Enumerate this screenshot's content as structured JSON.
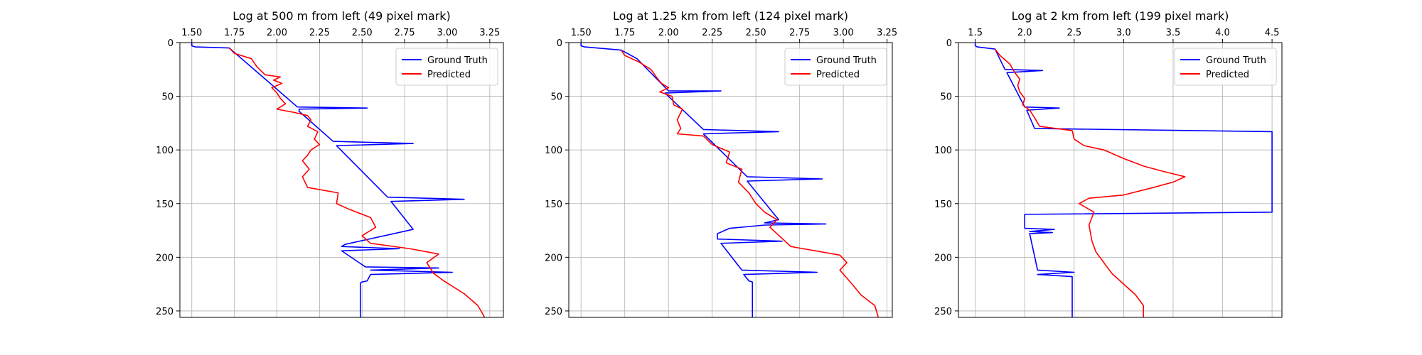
{
  "chart_data": [
    {
      "type": "line",
      "title": "Log at 500 m from left (49 pixel mark)",
      "xlim": [
        1.43,
        3.33
      ],
      "ylim": [
        256,
        0
      ],
      "xticks": [
        1.5,
        1.75,
        2.0,
        2.25,
        2.5,
        2.75,
        3.0,
        3.25
      ],
      "xtick_labels": [
        "1.50",
        "1.75",
        "2.00",
        "2.25",
        "2.50",
        "2.75",
        "3.00",
        "3.25"
      ],
      "yticks": [
        0,
        50,
        100,
        150,
        200,
        250
      ],
      "ytick_labels": [
        "0",
        "50",
        "100",
        "150",
        "200",
        "250"
      ],
      "grid": true,
      "legend": "top-right",
      "series": [
        {
          "name": "Ground Truth",
          "color": "#0000ff",
          "points": [
            [
              1.5,
              0
            ],
            [
              1.5,
              3
            ],
            [
              1.52,
              4
            ],
            [
              1.72,
              5
            ],
            [
              2.12,
              60
            ],
            [
              2.53,
              61
            ],
            [
              2.13,
              62
            ],
            [
              2.13,
              64
            ],
            [
              2.33,
              92
            ],
            [
              2.8,
              94
            ],
            [
              2.35,
              96
            ],
            [
              2.65,
              144
            ],
            [
              3.1,
              146
            ],
            [
              2.67,
              148
            ],
            [
              2.8,
              174
            ],
            [
              2.4,
              188
            ],
            [
              2.38,
              190
            ],
            [
              2.72,
              192
            ],
            [
              2.38,
              194
            ],
            [
              2.52,
              209
            ],
            [
              2.95,
              210
            ],
            [
              2.55,
              212
            ],
            [
              3.03,
              214
            ],
            [
              2.55,
              216
            ],
            [
              2.53,
              222
            ],
            [
              2.5,
              223
            ],
            [
              2.49,
              224
            ],
            [
              2.49,
              256
            ]
          ]
        },
        {
          "name": "Predicted",
          "color": "#ff0000",
          "points": [
            [
              1.72,
              5
            ],
            [
              1.75,
              10
            ],
            [
              1.85,
              15
            ],
            [
              1.88,
              22
            ],
            [
              1.93,
              30
            ],
            [
              2.02,
              32
            ],
            [
              1.98,
              35
            ],
            [
              2.03,
              38
            ],
            [
              1.97,
              42
            ],
            [
              2.0,
              47
            ],
            [
              2.02,
              52
            ],
            [
              2.05,
              57
            ],
            [
              2.0,
              62
            ],
            [
              2.1,
              65
            ],
            [
              2.18,
              68
            ],
            [
              2.2,
              72
            ],
            [
              2.18,
              78
            ],
            [
              2.24,
              83
            ],
            [
              2.22,
              90
            ],
            [
              2.25,
              95
            ],
            [
              2.2,
              100
            ],
            [
              2.18,
              105
            ],
            [
              2.15,
              110
            ],
            [
              2.19,
              118
            ],
            [
              2.15,
              125
            ],
            [
              2.18,
              135
            ],
            [
              2.36,
              140
            ],
            [
              2.35,
              150
            ],
            [
              2.42,
              155
            ],
            [
              2.55,
              163
            ],
            [
              2.58,
              172
            ],
            [
              2.5,
              180
            ],
            [
              2.55,
              187
            ],
            [
              2.78,
              192
            ],
            [
              2.95,
              197
            ],
            [
              2.88,
              205
            ],
            [
              2.92,
              215
            ],
            [
              2.98,
              222
            ],
            [
              3.1,
              234
            ],
            [
              3.18,
              245
            ],
            [
              3.22,
              256
            ]
          ]
        }
      ]
    },
    {
      "type": "line",
      "title": "Log at 1.25 km from left (124 pixel mark)",
      "xlim": [
        1.43,
        3.28
      ],
      "ylim": [
        256,
        0
      ],
      "xticks": [
        1.5,
        1.75,
        2.0,
        2.25,
        2.5,
        2.75,
        3.0,
        3.25
      ],
      "xtick_labels": [
        "1.50",
        "1.75",
        "2.00",
        "2.25",
        "2.50",
        "2.75",
        "3.00",
        "3.25"
      ],
      "yticks": [
        0,
        50,
        100,
        150,
        200,
        250
      ],
      "ytick_labels": [
        "0",
        "50",
        "100",
        "150",
        "200",
        "250"
      ],
      "grid": true,
      "legend": "top-right",
      "series": [
        {
          "name": "Ground Truth",
          "color": "#0000ff",
          "points": [
            [
              1.5,
              0
            ],
            [
              1.5,
              3
            ],
            [
              1.52,
              4
            ],
            [
              1.73,
              7
            ],
            [
              1.82,
              15
            ],
            [
              2.0,
              45
            ],
            [
              2.3,
              45
            ],
            [
              1.98,
              47
            ],
            [
              2.2,
              81
            ],
            [
              2.63,
              83
            ],
            [
              2.2,
              85
            ],
            [
              2.45,
              125
            ],
            [
              2.88,
              127
            ],
            [
              2.45,
              129
            ],
            [
              2.63,
              165
            ],
            [
              2.55,
              168
            ],
            [
              2.9,
              169
            ],
            [
              2.55,
              170
            ],
            [
              2.35,
              173
            ],
            [
              2.28,
              178
            ],
            [
              2.28,
              183
            ],
            [
              2.65,
              185
            ],
            [
              2.3,
              187
            ],
            [
              2.42,
              212
            ],
            [
              2.85,
              214
            ],
            [
              2.43,
              216
            ],
            [
              2.46,
              222
            ],
            [
              2.48,
              223
            ],
            [
              2.48,
              256
            ]
          ]
        },
        {
          "name": "Predicted",
          "color": "#ff0000",
          "points": [
            [
              1.73,
              7
            ],
            [
              1.75,
              12
            ],
            [
              1.83,
              18
            ],
            [
              1.9,
              25
            ],
            [
              1.93,
              32
            ],
            [
              1.96,
              38
            ],
            [
              2.0,
              42
            ],
            [
              1.95,
              46
            ],
            [
              2.02,
              50
            ],
            [
              2.03,
              58
            ],
            [
              2.08,
              62
            ],
            [
              2.05,
              72
            ],
            [
              2.07,
              80
            ],
            [
              2.05,
              85
            ],
            [
              2.2,
              87
            ],
            [
              2.25,
              95
            ],
            [
              2.35,
              102
            ],
            [
              2.33,
              112
            ],
            [
              2.42,
              118
            ],
            [
              2.4,
              130
            ],
            [
              2.46,
              140
            ],
            [
              2.5,
              150
            ],
            [
              2.55,
              158
            ],
            [
              2.62,
              165
            ],
            [
              2.58,
              172
            ],
            [
              2.62,
              178
            ],
            [
              2.7,
              190
            ],
            [
              2.98,
              198
            ],
            [
              3.02,
              205
            ],
            [
              2.98,
              212
            ],
            [
              3.05,
              225
            ],
            [
              3.1,
              235
            ],
            [
              3.18,
              245
            ],
            [
              3.2,
              256
            ]
          ]
        }
      ]
    },
    {
      "type": "line",
      "title": "Log at 2 km from left (199 pixel mark)",
      "xlim": [
        1.33,
        4.6
      ],
      "ylim": [
        256,
        0
      ],
      "xticks": [
        1.5,
        2.0,
        2.5,
        3.0,
        3.5,
        4.0,
        4.5
      ],
      "xtick_labels": [
        "1.5",
        "2.0",
        "2.5",
        "3.0",
        "3.5",
        "4.0",
        "4.5"
      ],
      "yticks": [
        0,
        50,
        100,
        150,
        200,
        250
      ],
      "ytick_labels": [
        "0",
        "50",
        "100",
        "150",
        "200",
        "250"
      ],
      "grid": true,
      "legend": "top-right",
      "series": [
        {
          "name": "Ground Truth",
          "color": "#0000ff",
          "points": [
            [
              1.5,
              0
            ],
            [
              1.5,
              3
            ],
            [
              1.52,
              4
            ],
            [
              1.7,
              6
            ],
            [
              1.8,
              25
            ],
            [
              2.18,
              26
            ],
            [
              1.82,
              28
            ],
            [
              2.0,
              60
            ],
            [
              2.35,
              61
            ],
            [
              2.02,
              63
            ],
            [
              2.1,
              80
            ],
            [
              4.5,
              83
            ],
            [
              4.5,
              158
            ],
            [
              2.0,
              160
            ],
            [
              2.0,
              173
            ],
            [
              2.3,
              174
            ],
            [
              2.05,
              176
            ],
            [
              2.28,
              177
            ],
            [
              2.05,
              178
            ],
            [
              2.13,
              212
            ],
            [
              2.5,
              214
            ],
            [
              2.13,
              216
            ],
            [
              2.48,
              218
            ],
            [
              2.48,
              256
            ]
          ]
        },
        {
          "name": "Predicted",
          "color": "#ff0000",
          "points": [
            [
              1.7,
              6
            ],
            [
              1.75,
              12
            ],
            [
              1.85,
              20
            ],
            [
              1.9,
              28
            ],
            [
              1.95,
              34
            ],
            [
              1.93,
              40
            ],
            [
              1.95,
              46
            ],
            [
              2.0,
              52
            ],
            [
              1.98,
              58
            ],
            [
              2.05,
              63
            ],
            [
              2.1,
              70
            ],
            [
              2.15,
              78
            ],
            [
              2.48,
              82
            ],
            [
              2.5,
              90
            ],
            [
              2.6,
              96
            ],
            [
              2.8,
              100
            ],
            [
              3.0,
              108
            ],
            [
              3.2,
              115
            ],
            [
              3.4,
              120
            ],
            [
              3.62,
              125
            ],
            [
              3.5,
              130
            ],
            [
              3.3,
              135
            ],
            [
              3.0,
              142
            ],
            [
              2.65,
              145
            ],
            [
              2.55,
              150
            ],
            [
              2.7,
              158
            ],
            [
              2.65,
              170
            ],
            [
              2.68,
              185
            ],
            [
              2.72,
              195
            ],
            [
              2.8,
              205
            ],
            [
              2.88,
              215
            ],
            [
              3.0,
              225
            ],
            [
              3.12,
              235
            ],
            [
              3.2,
              245
            ],
            [
              3.2,
              256
            ]
          ]
        }
      ]
    }
  ]
}
